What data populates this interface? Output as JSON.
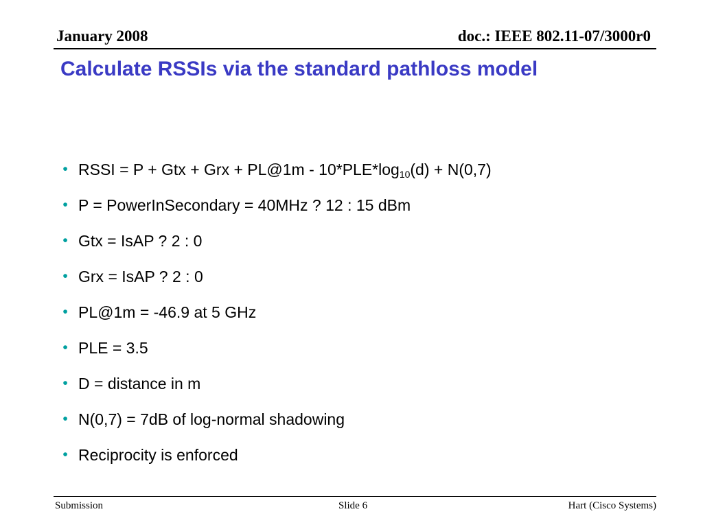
{
  "header": {
    "date": "January 2008",
    "doc_id": "doc.: IEEE 802.11-07/3000r0"
  },
  "title": "Calculate RSSIs via the standard pathloss model",
  "bullet_marker": "•",
  "bullets": [
    {
      "pre": "RSSI = P + Gtx + Grx + PL@1m - 10*PLE*log",
      "sub": "10",
      "post": "(d) + N(0,7)"
    },
    {
      "pre": "P = PowerInSecondary =  40MHz ? 12 : 15 dBm",
      "sub": "",
      "post": ""
    },
    {
      "pre": "Gtx = IsAP ? 2 : 0",
      "sub": "",
      "post": ""
    },
    {
      "pre": "Grx = IsAP ? 2 : 0",
      "sub": "",
      "post": ""
    },
    {
      "pre": "PL@1m  = -46.9 at 5 GHz",
      "sub": "",
      "post": ""
    },
    {
      "pre": "PLE = 3.5",
      "sub": "",
      "post": ""
    },
    {
      "pre": "D = distance in m",
      "sub": "",
      "post": ""
    },
    {
      "pre": "N(0,7) = 7dB of log-normal shadowing",
      "sub": "",
      "post": ""
    },
    {
      "pre": "Reciprocity is enforced",
      "sub": "",
      "post": ""
    }
  ],
  "footer": {
    "left": "Submission",
    "center": "Slide 6",
    "right": "Hart (Cisco Systems)"
  },
  "colors": {
    "title": "#3a3ac4",
    "bullet_marker": "#00a0a0",
    "text": "#000000"
  }
}
